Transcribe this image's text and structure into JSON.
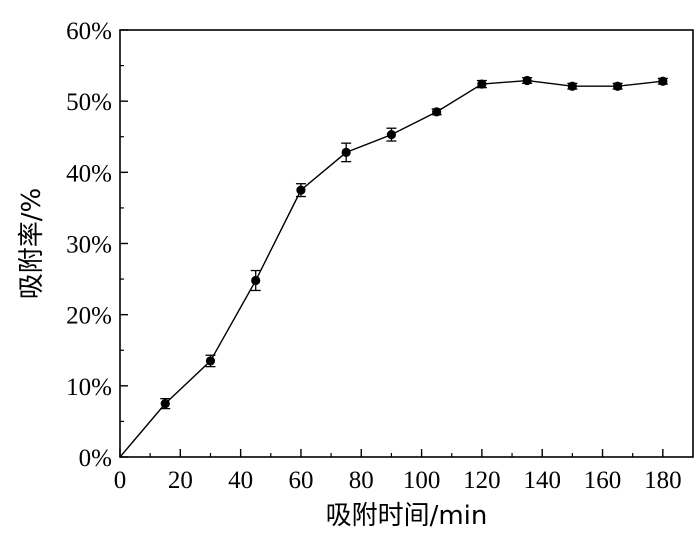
{
  "chart_data": {
    "type": "line",
    "xlabel": "吸附时间/min",
    "ylabel": "吸附率/%",
    "xlim": [
      0,
      190
    ],
    "ylim": [
      0,
      60
    ],
    "xticks": [
      0,
      20,
      40,
      60,
      80,
      100,
      120,
      140,
      160,
      180
    ],
    "yticks": [
      0,
      10,
      20,
      30,
      40,
      50,
      60
    ],
    "ytick_suffix": "%",
    "grid": false,
    "series": [
      {
        "marker": "circle",
        "color": "#000000",
        "x": [
          0,
          15,
          30,
          45,
          60,
          75,
          90,
          105,
          120,
          135,
          150,
          165,
          180
        ],
        "y": [
          0,
          7.5,
          13.5,
          24.8,
          37.5,
          42.8,
          45.3,
          48.5,
          52.4,
          52.9,
          52.1,
          52.1,
          52.8
        ],
        "err": [
          0,
          0.7,
          0.8,
          1.4,
          0.9,
          1.3,
          0.9,
          0.4,
          0.5,
          0.4,
          0.4,
          0.4,
          0.4
        ]
      }
    ]
  }
}
